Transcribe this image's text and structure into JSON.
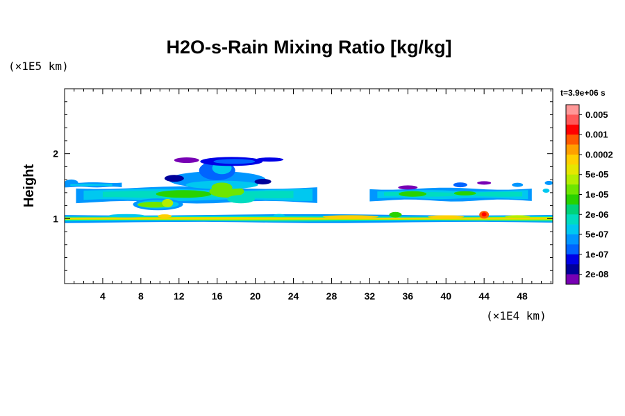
{
  "chart_data": {
    "type": "heatmap",
    "title": "H2O-s-Rain Mixing Ratio [kg/kg]",
    "ylabel": "Height",
    "xlabel": "",
    "x_unit": "(×1E4 km)",
    "y_unit": "(×1E5 km)",
    "time_label": "t=3.9e+06 s",
    "xlim": [
      0,
      51.2
    ],
    "ylim": [
      0,
      3.0
    ],
    "x_ticks": [
      4,
      8,
      12,
      16,
      20,
      24,
      28,
      32,
      36,
      40,
      44,
      48
    ],
    "y_ticks": [
      1,
      2
    ],
    "grid": false,
    "colorbar": {
      "levels": [
        "0.005",
        "0.001",
        "0.0002",
        "5e-05",
        "1e-05",
        "2e-06",
        "5e-07",
        "1e-07",
        "2e-08"
      ],
      "colors": [
        "#ff9898",
        "#ff5858",
        "#ff0000",
        "#ff5a00",
        "#ffa000",
        "#ffd000",
        "#e6e600",
        "#b4ee00",
        "#6ee600",
        "#28d200",
        "#00d27a",
        "#00dcc0",
        "#00c8f0",
        "#0096ff",
        "#0064ff",
        "#0000e6",
        "#00009a",
        "#7800b4"
      ]
    },
    "cloud_layers": [
      {
        "name": "surface layer",
        "x": [
          0,
          51.2
        ],
        "y": [
          0.95,
          1.06
        ],
        "max_level": "0.0002"
      },
      {
        "name": "main layer",
        "x": [
          1,
          26.5
        ],
        "y": [
          1.28,
          1.45
        ],
        "max_level": "1e-05"
      },
      {
        "name": "upper plume",
        "x": [
          11,
          22
        ],
        "y": [
          1.5,
          1.95
        ],
        "max_level": "5e-05"
      },
      {
        "name": "right layer",
        "x": [
          32,
          49
        ],
        "y": [
          1.28,
          1.45
        ],
        "max_level": "1e-05"
      },
      {
        "name": "hotspot",
        "x": [
          43.5,
          44.5
        ],
        "y": [
          1.0,
          1.12
        ],
        "max_level": "0.001"
      }
    ]
  }
}
